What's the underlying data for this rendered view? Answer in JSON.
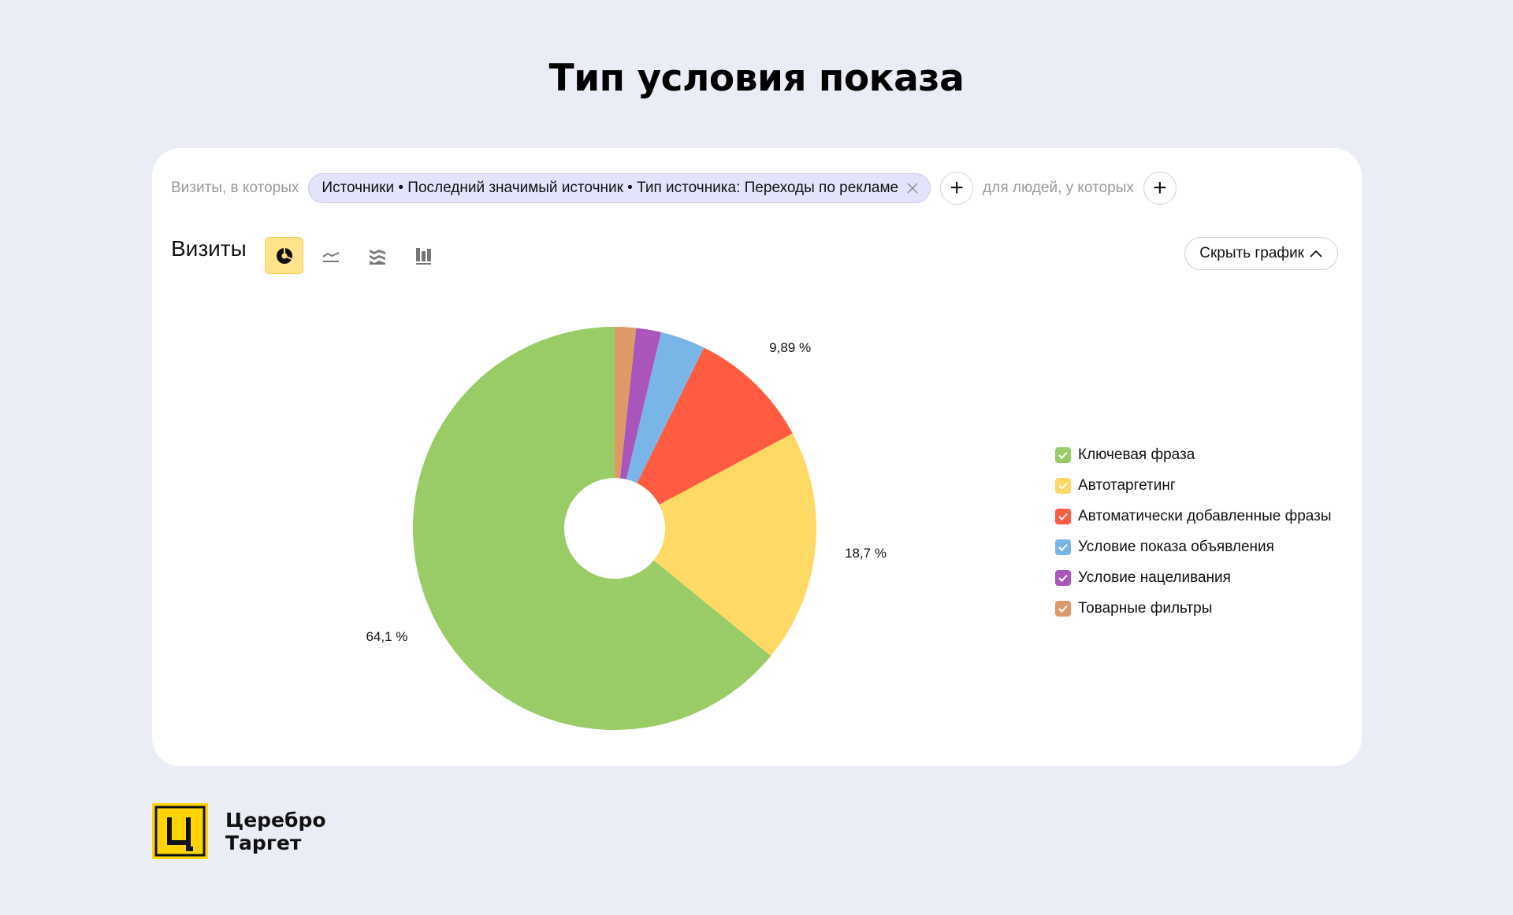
{
  "page": {
    "title": "Тип условия показа"
  },
  "filters": {
    "visits_label": "Визиты, в которых",
    "chip_text": "Источники • Последний значимый источник • Тип источника: Переходы по рекламе",
    "people_label": "для людей, у которых",
    "plus_symbol": "+"
  },
  "chart_header": {
    "metric_title": "Визиты",
    "views": [
      "pie",
      "line",
      "area",
      "bar"
    ],
    "active_view": "pie",
    "hide_button_label": "Скрыть график"
  },
  "chart_data": {
    "type": "pie",
    "donut": true,
    "categories": [
      "Ключевая фраза",
      "Автотаргетинг",
      "Автоматически добавленные фразы",
      "Условие показа объявления",
      "Условие нацеливания",
      "Товарные фильтры"
    ],
    "values": [
      64.1,
      18.7,
      9.89,
      3.6,
      2.0,
      1.7
    ],
    "data_labels": [
      "64,1 %",
      "18,7 %",
      "9,89 %",
      "",
      "",
      ""
    ],
    "colors": [
      "#99cc66",
      "#ffd966",
      "#ff5b40",
      "#7ab5e8",
      "#aa55bb",
      "#dd9966"
    ],
    "legend_position": "right"
  },
  "logo": {
    "line1": "Церебро",
    "line2": "Таргет",
    "mark": "Ц",
    "color": "#ffd400"
  }
}
